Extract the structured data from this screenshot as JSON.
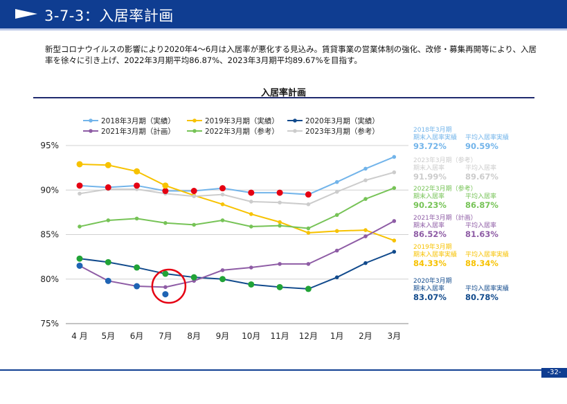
{
  "header": {
    "title": "3-7-3：入居率計画"
  },
  "description": "新型コロナウイルスの影響により2020年4〜6月は入居率が悪化する見込み。賃貸事業の営業体制の強化、改修・募集再開等により、入居率を徐々に引き上げ、2022年3月期平均86.87%、2023年3月期平均89.67%を目指す。",
  "page_number": "-32-",
  "colors": {
    "header": "#0f3d91",
    "accent_red": "#e50012"
  },
  "chart_data": {
    "type": "line",
    "title": "入居率計画",
    "categories": [
      "4 月",
      "5月",
      "6月",
      "7月",
      "8月",
      "9月",
      "10月",
      "11月",
      "12月",
      "1月",
      "2月",
      "3月"
    ],
    "y_ticks": [
      "95%",
      "90%",
      "85%",
      "80%",
      "75%"
    ],
    "ylim": [
      75,
      95
    ],
    "legend_position": "top",
    "series": [
      {
        "name": "2018年3月期（実績）",
        "color": "#72b4ea",
        "values": [
          90.5,
          90.3,
          90.5,
          89.9,
          89.9,
          90.2,
          89.7,
          89.7,
          89.5,
          90.9,
          92.4,
          93.72
        ]
      },
      {
        "name": "2019年3月期（実績）",
        "color": "#f7c200",
        "values": [
          92.9,
          92.8,
          92.1,
          90.5,
          89.4,
          88.4,
          87.3,
          86.4,
          85.2,
          85.4,
          85.5,
          84.33
        ]
      },
      {
        "name": "2020年3月期（実績）",
        "color": "#114a8c",
        "values": [
          82.3,
          81.9,
          81.3,
          80.6,
          80.2,
          80.0,
          79.4,
          79.1,
          78.9,
          80.2,
          81.8,
          83.07
        ]
      },
      {
        "name": "2021年3月期（計画）",
        "color": "#8e5ca5",
        "values": [
          81.5,
          79.8,
          79.2,
          79.1,
          79.8,
          81.0,
          81.3,
          81.7,
          81.7,
          83.2,
          84.8,
          86.52
        ]
      },
      {
        "name": "2022年3月期（参考）",
        "color": "#76c356",
        "values": [
          85.9,
          86.6,
          86.8,
          86.3,
          86.1,
          86.6,
          85.9,
          86.0,
          85.7,
          87.2,
          89.0,
          90.23
        ]
      },
      {
        "name": "2023年3月期（参考）",
        "color": "#cccccc",
        "values": [
          89.6,
          90.1,
          90.1,
          89.6,
          89.3,
          89.5,
          88.7,
          88.6,
          88.4,
          89.8,
          91.1,
          91.99
        ]
      }
    ],
    "markers": [
      {
        "color": "#e50012",
        "series": 0,
        "points": [
          0,
          1,
          2,
          3,
          4,
          5,
          6,
          7,
          8
        ]
      },
      {
        "color": "#f7c200",
        "series": 1,
        "points": [
          0,
          1,
          2,
          3
        ]
      },
      {
        "color": "#21a337",
        "series": 2,
        "points": [
          0,
          1,
          2,
          3,
          4,
          5,
          6,
          7,
          8
        ]
      },
      {
        "color": "#1f64b4",
        "series": 3,
        "points": [
          0,
          1,
          2
        ],
        "extra": [
          {
            "index": 3,
            "value": 78.3
          }
        ]
      }
    ],
    "annotation": "red circle highlighting July 2020 actual point",
    "side_panel": [
      {
        "color": "#72b4ea",
        "period": "2018年3月期",
        "label1": "期末入居率実績",
        "label2": "平均入居率実績",
        "value1": "93.72%",
        "value2": "90.59%"
      },
      {
        "color": "#cccccc",
        "period": "2023年3月期（参考）",
        "label1": "期末入居率",
        "label2": "平均入居率",
        "value1": "91.99%",
        "value2": "89.67%"
      },
      {
        "color": "#76c356",
        "period": "2022年3月期（参考）",
        "label1": "期末入居率",
        "label2": "平均入居率",
        "value1": "90.23%",
        "value2": "86.87%"
      },
      {
        "color": "#8e5ca5",
        "period": "2021年3月期（計画）",
        "label1": "期末入居率",
        "label2": "平均入居率",
        "value1": "86.52%",
        "value2": "81.63%"
      },
      {
        "color": "#f7c200",
        "period": "2019年3月期",
        "label1": "期末入居率実績",
        "label2": "平均入居率実績",
        "value1": "84.33%",
        "value2": "88.34%"
      },
      {
        "color": "#114a8c",
        "period": "2020年3月期",
        "label1": "期末入居率",
        "label2": "平均入居率実績",
        "value1": "83.07%",
        "value2": "80.78%"
      }
    ]
  }
}
